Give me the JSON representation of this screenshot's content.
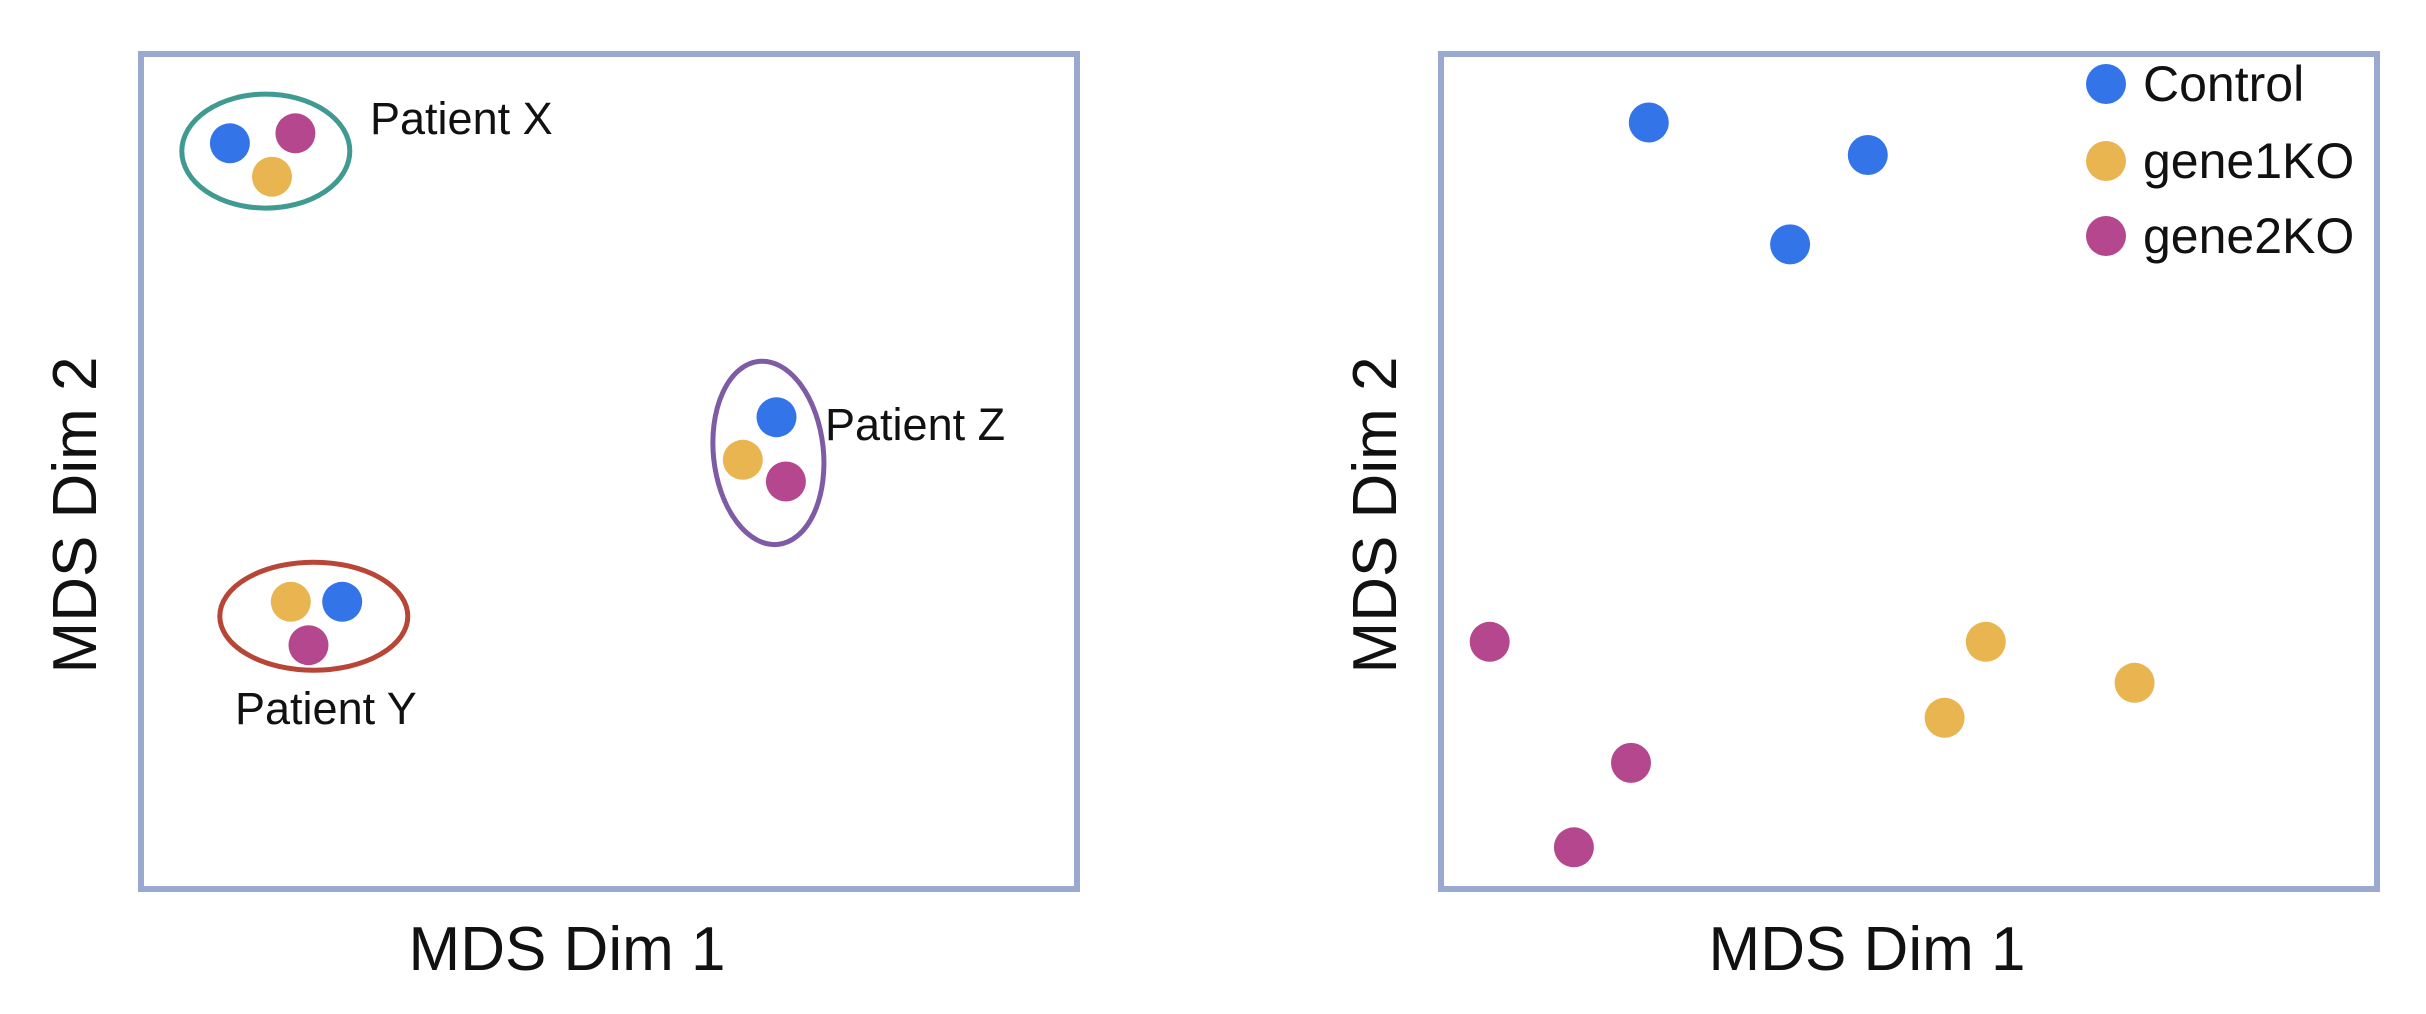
{
  "colors": {
    "Control": "#3375e8",
    "gene1KO": "#e9b551",
    "gene2KO": "#b5478f",
    "frame": "#9aa9cf"
  },
  "chart_data": [
    {
      "type": "scatter",
      "title": "",
      "xlabel": "MDS Dim 1",
      "ylabel": "MDS Dim 2",
      "xlim": [
        0,
        100
      ],
      "ylim": [
        0,
        100
      ],
      "grid": false,
      "legend": null,
      "series": [
        {
          "group": "Control",
          "points": [
            [
              9.5,
              89.3
            ],
            [
              21.5,
              34.4
            ],
            [
              67.9,
              56.5
            ]
          ]
        },
        {
          "group": "gene1KO",
          "points": [
            [
              14,
              85.3
            ],
            [
              16,
              34.4
            ],
            [
              64.3,
              51.4
            ]
          ]
        },
        {
          "group": "gene2KO",
          "points": [
            [
              16.5,
              90.5
            ],
            [
              17.9,
              29.2
            ],
            [
              68.9,
              48.8
            ]
          ]
        }
      ],
      "annotations": [
        {
          "text": "Patient X",
          "group_points": [
            [
              9.5,
              89.3
            ],
            [
              14,
              85.3
            ],
            [
              16.5,
              90.5
            ]
          ],
          "ellipse_color": "#3f9a91"
        },
        {
          "text": "Patient Y",
          "group_points": [
            [
              21.5,
              34.4
            ],
            [
              16,
              34.4
            ],
            [
              17.9,
              29.2
            ]
          ],
          "ellipse_color": "#b84536"
        },
        {
          "text": "Patient Z",
          "group_points": [
            [
              67.9,
              56.5
            ],
            [
              64.3,
              51.4
            ],
            [
              68.9,
              48.8
            ]
          ],
          "ellipse_color": "#7e5ba4"
        }
      ]
    },
    {
      "type": "scatter",
      "title": "",
      "xlabel": "MDS Dim 1",
      "ylabel": "MDS Dim 2",
      "xlim": [
        0,
        100
      ],
      "ylim": [
        0,
        100
      ],
      "grid": false,
      "legend": "top-right",
      "legend_entries": [
        "Control",
        "gene1KO",
        "gene2KO"
      ],
      "series": [
        {
          "name": "Control",
          "points": [
            [
              22.2,
              91.8
            ],
            [
              45.6,
              87.9
            ],
            [
              37.3,
              77.2
            ]
          ]
        },
        {
          "name": "gene1KO",
          "points": [
            [
              58.2,
              29.6
            ],
            [
              74.1,
              24.7
            ],
            [
              53.8,
              20.5
            ]
          ]
        },
        {
          "name": "gene2KO",
          "points": [
            [
              5.2,
              29.6
            ],
            [
              20.3,
              15.1
            ],
            [
              14.2,
              5
            ]
          ]
        }
      ]
    }
  ]
}
